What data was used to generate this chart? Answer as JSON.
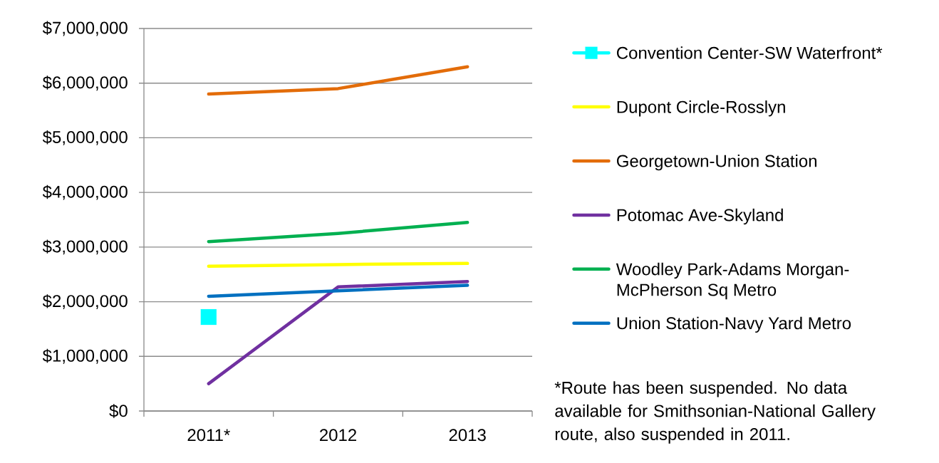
{
  "chart_data": {
    "type": "line",
    "categories": [
      "2011*",
      "2012",
      "2013"
    ],
    "series": [
      {
        "name": "Convention Center-SW Waterfront*",
        "color": "#00ffff",
        "marker": "square",
        "values": [
          1720000,
          null,
          null
        ]
      },
      {
        "name": "Dupont Circle-Rosslyn",
        "color": "#ffff00",
        "values": [
          2650000,
          2680000,
          2700000
        ]
      },
      {
        "name": "Georgetown-Union Station",
        "color": "#e36c09",
        "values": [
          5800000,
          5900000,
          6300000
        ]
      },
      {
        "name": "Potomac Ave-Skyland",
        "color": "#7030a0",
        "values": [
          500000,
          2270000,
          2370000
        ]
      },
      {
        "name": "Woodley Park-Adams Morgan-McPherson Sq Metro",
        "color": "#00b050",
        "values": [
          3100000,
          3250000,
          3450000
        ]
      },
      {
        "name": "Union Station-Navy Yard Metro",
        "color": "#0070c0",
        "values": [
          2100000,
          2200000,
          2300000
        ]
      }
    ],
    "ylim": [
      0,
      7000000
    ],
    "yticks": [
      {
        "value": 0,
        "label": "$0"
      },
      {
        "value": 1000000,
        "label": "$1,000,000"
      },
      {
        "value": 2000000,
        "label": "$2,000,000"
      },
      {
        "value": 3000000,
        "label": "$3,000,000"
      },
      {
        "value": 4000000,
        "label": "$4,000,000"
      },
      {
        "value": 5000000,
        "label": "$5,000,000"
      },
      {
        "value": 6000000,
        "label": "$6,000,000"
      },
      {
        "value": 7000000,
        "label": "$7,000,000"
      }
    ],
    "grid": "y",
    "legend": "right",
    "annotations": [
      "*Route has been suspended.  No data available for Smithsonian-National Gallery route, also suspended in 2011."
    ]
  }
}
